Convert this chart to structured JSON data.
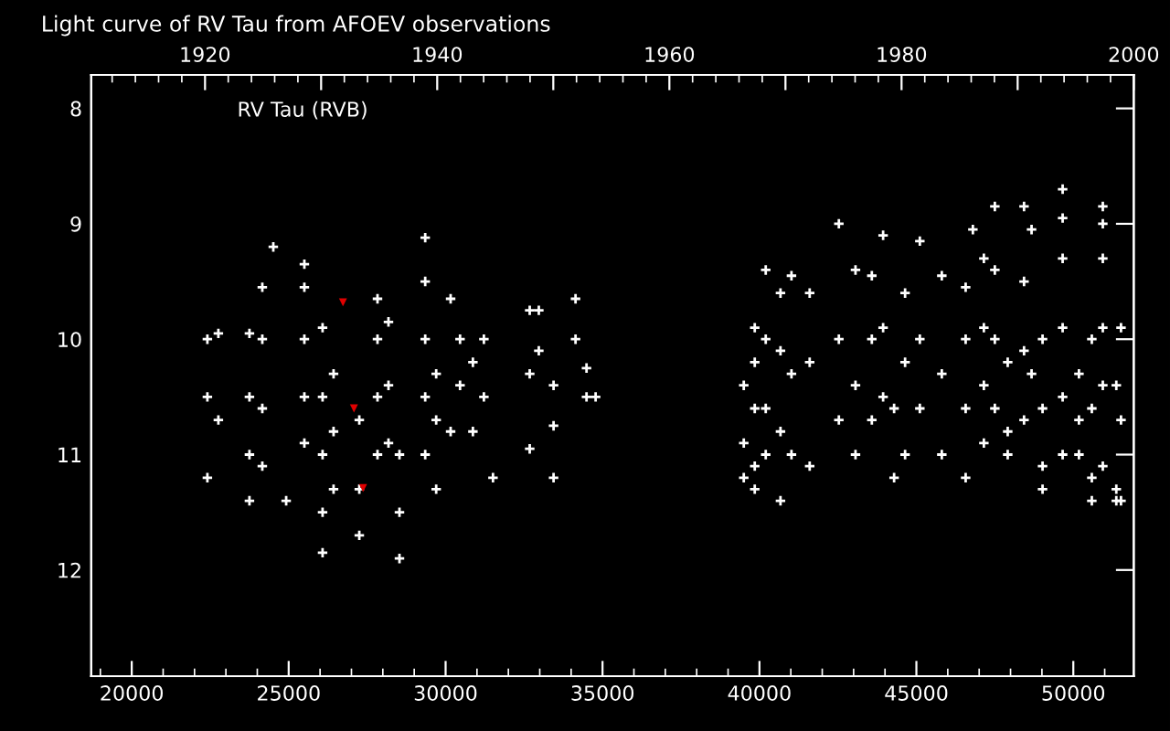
{
  "chart_data": {
    "type": "scatter",
    "title": "Light curve of RV Tau from AFOEV observations",
    "annotations": [
      "RV Tau (RVB)"
    ],
    "xlim": [
      18710,
      51925
    ],
    "xticks": [
      20000,
      25000,
      30000,
      35000,
      40000,
      45000,
      50000
    ],
    "x2lim": [
      1910.2,
      2000
    ],
    "x2ticks": [
      1920,
      {
        "value": 1930,
        "label": null
      },
      1940,
      {
        "value": 1950,
        "label": null
      },
      1960,
      {
        "value": 1970,
        "label": null
      },
      1980,
      {
        "value": 1990,
        "label": null
      },
      2000
    ],
    "ylim": [
      12.92,
      7.71
    ],
    "yticks": [
      8,
      9,
      10,
      11,
      12
    ],
    "marker": "cross",
    "grid": false,
    "series": [
      {
        "color": "#ffffff",
        "x": [
          22410,
          22410,
          22410,
          22760,
          22760,
          23750,
          23750,
          23750,
          23750,
          24160,
          24160,
          24160,
          24160,
          24510,
          24920,
          25500,
          25500,
          25500,
          25500,
          25500,
          26080,
          26080,
          26080,
          26080,
          26080,
          26430,
          26430,
          26430,
          27250,
          27250,
          27250,
          27830,
          27830,
          27830,
          27830,
          28180,
          28180,
          28180,
          28530,
          28530,
          28530,
          29350,
          29350,
          29350,
          29350,
          29350,
          29700,
          29700,
          29700,
          30160,
          30160,
          30460,
          30460,
          30870,
          30870,
          31220,
          31220,
          31510,
          32680,
          32680,
          32680,
          32970,
          32970,
          33440,
          33440,
          33440,
          34140,
          34140,
          34490,
          34490,
          34780,
          39500,
          39500,
          39500,
          39850,
          39850,
          39850,
          39850,
          39850,
          40200,
          40200,
          40200,
          40200,
          40670,
          40670,
          40670,
          40670,
          41020,
          41020,
          41020,
          41600,
          41600,
          41600,
          42530,
          42530,
          42530,
          43060,
          43060,
          43060,
          43580,
          43580,
          43580,
          43940,
          43940,
          43940,
          44290,
          44290,
          44640,
          44640,
          44640,
          45110,
          45110,
          45110,
          45810,
          45810,
          45810,
          46570,
          46570,
          46570,
          46570,
          46800,
          47150,
          47150,
          47150,
          47150,
          47500,
          47500,
          47500,
          47500,
          47910,
          47910,
          47910,
          48430,
          48430,
          48430,
          48430,
          48670,
          48670,
          49020,
          49020,
          49020,
          49020,
          49660,
          49660,
          49660,
          49660,
          49660,
          49660,
          50180,
          50180,
          50180,
          50590,
          50590,
          50590,
          50590,
          50940,
          50940,
          50940,
          50940,
          50940,
          50940,
          51370,
          51370,
          51370,
          51520,
          51520,
          51520
        ],
        "values": [
          10.0,
          10.5,
          11.2,
          9.95,
          10.7,
          9.95,
          10.5,
          11.0,
          11.4,
          9.55,
          10.0,
          10.6,
          11.1,
          9.2,
          11.4,
          9.35,
          9.55,
          10.0,
          10.5,
          10.9,
          9.9,
          10.5,
          11.0,
          11.5,
          11.85,
          10.3,
          10.8,
          11.3,
          10.7,
          11.3,
          11.7,
          9.65,
          10.0,
          10.5,
          11.0,
          9.85,
          10.4,
          10.9,
          11.0,
          11.5,
          11.9,
          9.12,
          9.5,
          10.0,
          10.5,
          11.0,
          10.3,
          10.7,
          11.3,
          9.65,
          10.8,
          10.0,
          10.4,
          10.2,
          10.8,
          10.0,
          10.5,
          11.2,
          9.75,
          10.3,
          10.95,
          9.75,
          10.1,
          10.4,
          10.75,
          11.2,
          9.65,
          10.0,
          10.25,
          10.5,
          10.5,
          10.4,
          10.9,
          11.2,
          9.9,
          10.2,
          10.6,
          11.1,
          11.3,
          9.4,
          10.0,
          10.6,
          11.0,
          9.6,
          10.1,
          10.8,
          11.4,
          9.45,
          10.3,
          11.0,
          9.6,
          10.2,
          11.1,
          9.0,
          10.0,
          10.7,
          9.4,
          10.4,
          11.0,
          9.45,
          10.0,
          10.7,
          9.1,
          9.9,
          10.5,
          10.6,
          11.2,
          9.6,
          10.2,
          11.0,
          9.15,
          10.0,
          10.6,
          9.45,
          10.3,
          11.0,
          9.55,
          10.0,
          10.6,
          11.2,
          9.05,
          9.3,
          9.9,
          10.4,
          10.9,
          8.85,
          9.4,
          10.0,
          10.6,
          10.2,
          10.8,
          11.0,
          8.85,
          9.5,
          10.1,
          10.7,
          9.05,
          10.3,
          10.0,
          10.6,
          11.1,
          11.3,
          8.7,
          8.95,
          9.3,
          9.9,
          10.5,
          11.0,
          10.3,
          10.7,
          11.0,
          10.0,
          10.6,
          11.2,
          11.4,
          8.85,
          9.0,
          9.3,
          9.9,
          10.4,
          11.1,
          10.4,
          11.3,
          11.4,
          9.9,
          10.7,
          11.4
        ]
      },
      {
        "color": "#e00000",
        "marker": "triangle",
        "x": [
          26730,
          27080,
          27370
        ],
        "values": [
          9.68,
          10.6,
          11.29
        ]
      }
    ]
  }
}
